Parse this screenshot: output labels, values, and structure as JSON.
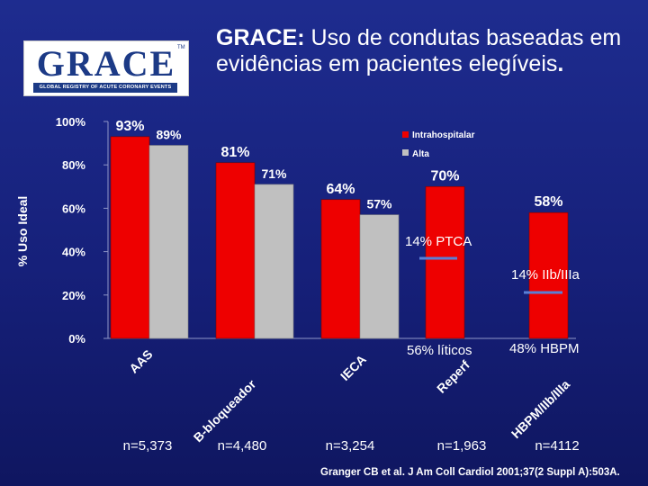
{
  "header": {
    "logo_text": "GRACE",
    "logo_tagline": "GLOBAL REGISTRY OF ACUTE CORONARY EVENTS",
    "logo_tm": "TM",
    "title_bold": "GRACE:",
    "title_rest": " Uso de condutas baseadas em evidências em pacientes elegíveis",
    "title_end": "."
  },
  "chart_data": {
    "type": "bar",
    "ylabel": "% Uso Ideal",
    "ylim": [
      0,
      100
    ],
    "yticks": [
      "0%",
      "20%",
      "40%",
      "60%",
      "80%",
      "100%"
    ],
    "categories": [
      "AAS",
      "B-bloqueador",
      "IECA",
      "Reperf",
      "HBPM/IIb/IIIa"
    ],
    "series": [
      {
        "name": "Intrahospitalar",
        "color": "#ee0000",
        "values": [
          93,
          81,
          64,
          70,
          58
        ],
        "labels": [
          "93%",
          "81%",
          "64%",
          "70%",
          "58%"
        ]
      },
      {
        "name": "Alta",
        "color": "#c0c0c0",
        "values": [
          89,
          71,
          57,
          null,
          null
        ],
        "labels": [
          "89%",
          "71%",
          "57%",
          "",
          ""
        ]
      }
    ],
    "legend_position": "top-right",
    "annotations": [
      "14% PTCA",
      "14% IIb/IIIa",
      "56% líticos",
      "48% HBPM"
    ],
    "n_labels": [
      "n=5,373",
      "n=4,480",
      "n=3,254",
      "n=1,963",
      "n=4112"
    ]
  },
  "citation": "Granger CB et al. J Am Coll Cardiol 2001;37(2 Suppl A):503A."
}
